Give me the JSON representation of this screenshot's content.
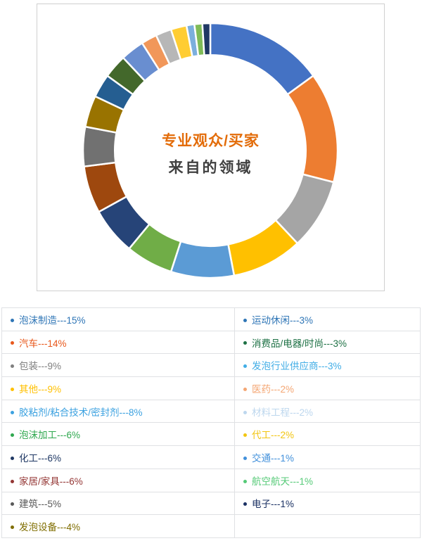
{
  "chart": {
    "center_title_line1": "专业观众/买家",
    "center_title_line2": "来自的领域",
    "title_color": "#e36c09",
    "subtitle_color": "#404040",
    "card_border_color": "#cfcfcf"
  },
  "chart_data": {
    "type": "pie",
    "subtype": "donut",
    "title": "专业观众/买家 来自的领域",
    "unit": "%",
    "start_angle_deg": 0,
    "direction": "clockwise",
    "inner_radius_ratio": 0.75,
    "slice_gap_color": "#ffffff",
    "slices": [
      {
        "label": "泡沫制造",
        "value": 15,
        "color": "#4472c4",
        "text_color": "#2e75b6"
      },
      {
        "label": "汽车",
        "value": 14,
        "color": "#ed7d31",
        "text_color": "#e8581c"
      },
      {
        "label": "包装",
        "value": 9,
        "color": "#a5a5a5",
        "text_color": "#7f7f7f"
      },
      {
        "label": "其他",
        "value": 9,
        "color": "#ffc000",
        "text_color": "#ffc000"
      },
      {
        "label": "胶粘剂/粘合技术/密封剂",
        "value": 8,
        "color": "#5b9bd5",
        "text_color": "#3ba1e0"
      },
      {
        "label": "泡沫加工",
        "value": 6,
        "color": "#70ad47",
        "text_color": "#2fa84f"
      },
      {
        "label": "化工",
        "value": 6,
        "color": "#264478",
        "text_color": "#1f3864"
      },
      {
        "label": "家居/家具",
        "value": 6,
        "color": "#9e480e",
        "text_color": "#943634"
      },
      {
        "label": "建筑",
        "value": 5,
        "color": "#717171",
        "text_color": "#595959"
      },
      {
        "label": "发泡设备",
        "value": 4,
        "color": "#997300",
        "text_color": "#7f6d00"
      },
      {
        "label": "运动休闲",
        "value": 3,
        "color": "#255e91",
        "text_color": "#2e75b6"
      },
      {
        "label": "消费品/电器/时尚",
        "value": 3,
        "color": "#43682b",
        "text_color": "#1e7145"
      },
      {
        "label": "发泡行业供应商",
        "value": 3,
        "color": "#698ed0",
        "text_color": "#41ade6"
      },
      {
        "label": "医药",
        "value": 2,
        "color": "#f1975a",
        "text_color": "#f4a673"
      },
      {
        "label": "材料工程",
        "value": 2,
        "color": "#b7b7b7",
        "text_color": "#bdd7ee"
      },
      {
        "label": "代工",
        "value": 2,
        "color": "#ffcd33",
        "text_color": "#f2c511"
      },
      {
        "label": "交通",
        "value": 1,
        "color": "#7cafdd",
        "text_color": "#4190db"
      },
      {
        "label": "航空航天",
        "value": 1,
        "color": "#7fbb57",
        "text_color": "#55ca77"
      },
      {
        "label": "电子",
        "value": 1,
        "color": "#203864",
        "text_color": "#1b3163"
      }
    ]
  },
  "legend_table": {
    "separator": "---",
    "value_suffix": "%",
    "left_column_slice_indexes": [
      0,
      1,
      2,
      3,
      4,
      5,
      6,
      7,
      8,
      9
    ],
    "right_column_slice_indexes": [
      10,
      11,
      12,
      13,
      14,
      15,
      16,
      17,
      18,
      null
    ]
  }
}
